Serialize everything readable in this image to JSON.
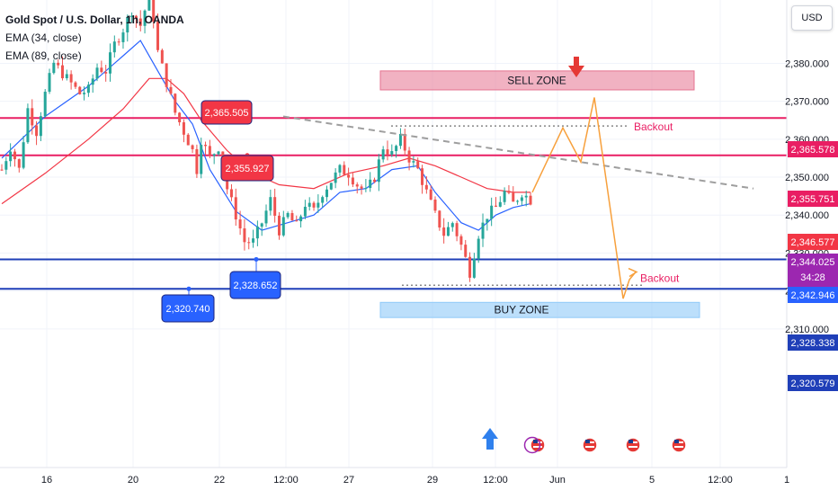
{
  "legend": {
    "title": "Gold Spot / U.S. Dollar, 1h, OANDA",
    "ema1": "EMA (34, close)",
    "ema2": "EMA (89, close)"
  },
  "currency_button": "USD",
  "colors": {
    "bull": "#26a69a",
    "bear": "#ef5350",
    "ema34": "#2962ff",
    "ema89": "#f23645",
    "support": "#1f3fb8",
    "resistance": "#e91e63",
    "projection": "#f7a03c",
    "sell_zone": "#e57390",
    "buy_zone": "#90caf9",
    "trendline": "#9e9e9e"
  },
  "annotations": {
    "sell_zone": "SELL ZONE",
    "buy_zone": "BUY ZONE",
    "backout_top": "Backout",
    "backout_bottom": "Backout",
    "callouts": [
      {
        "label": "2,365.505",
        "price": 2365.505,
        "color": "red"
      },
      {
        "label": "2,355.927",
        "price": 2355.927,
        "color": "red"
      },
      {
        "label": "2,328.652",
        "price": 2328.652,
        "color": "blue"
      },
      {
        "label": "2,320.740",
        "price": 2320.74,
        "color": "blue"
      }
    ]
  },
  "price_tags": [
    {
      "label": "2,365.578",
      "price": 2365.578,
      "bg": "#e91e63"
    },
    {
      "label": "2,355.751",
      "price": 2355.751,
      "bg": "#e91e63"
    },
    {
      "label": "2,346.577",
      "price": 2346.577,
      "bg": "#f23645"
    },
    {
      "label": "2,344.025",
      "label2": "34:28",
      "price": 2344.025,
      "bg": "#9c27b0"
    },
    {
      "label": "2,342.946",
      "price": 2342.946,
      "bg": "#2962ff"
    },
    {
      "label": "2,328.338",
      "price": 2328.338,
      "bg": "#1f3fb8"
    },
    {
      "label": "2,320.579",
      "price": 2320.579,
      "bg": "#1f3fb8"
    }
  ],
  "chart_data": {
    "type": "candlestick",
    "title": "Gold Spot / U.S. Dollar, 1h, OANDA",
    "y_ticks": [
      "2,310.000",
      "2,320.000",
      "2,330.000",
      "2,340.000",
      "2,350.000",
      "2,360.000",
      "2,370.000",
      "2,380.000"
    ],
    "y_tick_values": [
      2310,
      2320,
      2330,
      2340,
      2350,
      2360,
      2370,
      2380
    ],
    "x_ticks": [
      "16",
      "20",
      "22",
      "12:00",
      "27",
      "29",
      "12:00",
      "Jun",
      "5",
      "12:00",
      "1"
    ],
    "levels": {
      "resistance": [
        2365.578,
        2355.751
      ],
      "support": [
        2328.338,
        2320.579
      ]
    },
    "zones": {
      "sell": [
        2373,
        2378
      ],
      "buy": [
        2313,
        2317
      ]
    },
    "price_path": [
      [
        0,
        2352
      ],
      [
        2,
        2358
      ],
      [
        4,
        2352
      ],
      [
        6,
        2368
      ],
      [
        8,
        2362
      ],
      [
        10,
        2372
      ],
      [
        12,
        2380
      ],
      [
        15,
        2376
      ],
      [
        18,
        2372
      ],
      [
        20,
        2373
      ],
      [
        22,
        2379
      ],
      [
        24,
        2378
      ],
      [
        26,
        2385
      ],
      [
        28,
        2389
      ],
      [
        30,
        2394
      ],
      [
        32,
        2390
      ],
      [
        34,
        2398
      ],
      [
        35,
        2392
      ],
      [
        36,
        2383
      ],
      [
        38,
        2375
      ],
      [
        40,
        2367
      ],
      [
        42,
        2362
      ],
      [
        44,
        2357
      ],
      [
        45,
        2352
      ],
      [
        46,
        2360
      ],
      [
        48,
        2355
      ],
      [
        50,
        2358
      ],
      [
        52,
        2347
      ],
      [
        54,
        2340
      ],
      [
        56,
        2333
      ],
      [
        58,
        2333
      ],
      [
        60,
        2338
      ],
      [
        62,
        2344
      ],
      [
        64,
        2336
      ],
      [
        66,
        2340
      ],
      [
        68,
        2337
      ],
      [
        70,
        2343
      ],
      [
        72,
        2341
      ],
      [
        74,
        2346
      ],
      [
        76,
        2349
      ],
      [
        78,
        2352
      ],
      [
        80,
        2351
      ],
      [
        82,
        2348
      ],
      [
        84,
        2346
      ],
      [
        86,
        2350
      ],
      [
        88,
        2358
      ],
      [
        90,
        2356
      ],
      [
        92,
        2360
      ],
      [
        94,
        2355
      ],
      [
        96,
        2352
      ],
      [
        98,
        2346
      ],
      [
        100,
        2340
      ],
      [
        102,
        2335
      ],
      [
        104,
        2338
      ],
      [
        106,
        2332
      ],
      [
        108,
        2325
      ],
      [
        110,
        2335
      ],
      [
        112,
        2340
      ],
      [
        114,
        2342
      ],
      [
        116,
        2346
      ],
      [
        118,
        2343
      ],
      [
        120,
        2346
      ],
      [
        122,
        2344
      ]
    ],
    "ema34_path": [
      [
        0,
        2355
      ],
      [
        10,
        2366
      ],
      [
        20,
        2374
      ],
      [
        28,
        2382
      ],
      [
        32,
        2386
      ],
      [
        36,
        2378
      ],
      [
        40,
        2370
      ],
      [
        44,
        2364
      ],
      [
        48,
        2352
      ],
      [
        54,
        2341
      ],
      [
        60,
        2336
      ],
      [
        66,
        2338
      ],
      [
        72,
        2340
      ],
      [
        78,
        2346
      ],
      [
        84,
        2347
      ],
      [
        90,
        2352
      ],
      [
        96,
        2353
      ],
      [
        100,
        2346
      ],
      [
        106,
        2338
      ],
      [
        110,
        2336
      ],
      [
        114,
        2340
      ],
      [
        118,
        2342
      ],
      [
        122,
        2343
      ]
    ],
    "ema89_path": [
      [
        0,
        2343
      ],
      [
        10,
        2351
      ],
      [
        20,
        2360
      ],
      [
        28,
        2368
      ],
      [
        34,
        2376
      ],
      [
        38,
        2376
      ],
      [
        42,
        2372
      ],
      [
        46,
        2365
      ],
      [
        52,
        2357
      ],
      [
        58,
        2351
      ],
      [
        64,
        2348
      ],
      [
        72,
        2347
      ],
      [
        80,
        2351
      ],
      [
        88,
        2353
      ],
      [
        94,
        2355
      ],
      [
        100,
        2353
      ],
      [
        106,
        2350
      ],
      [
        112,
        2347
      ],
      [
        118,
        2346
      ],
      [
        122,
        2346
      ]
    ],
    "trendline": [
      [
        2315.5,
        2366
      ],
      [
        2838,
        2347
      ]
    ],
    "projection_path": [
      [
        2346,
        2355
      ],
      [
        2357,
        2362
      ],
      [
        2363,
        2357
      ],
      [
        2374,
        2371
      ],
      [
        2384,
        2318
      ],
      [
        2390,
        2324
      ],
      [
        2396,
        2326
      ]
    ]
  }
}
